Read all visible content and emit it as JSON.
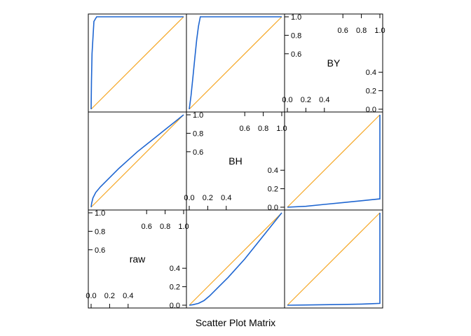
{
  "chart_data": {
    "type": "scatter",
    "title": "",
    "xlabel": "Scatter Plot Matrix",
    "variables": [
      "raw",
      "BH",
      "BY"
    ],
    "axis_range": [
      0,
      1
    ],
    "grid": false,
    "colors": {
      "points": "#1f66d1",
      "reference_line": "#f5a623",
      "frame": "#000000"
    },
    "diagonal_ticks": {
      "left_values": [
        "0.6",
        "0.8",
        "1.0"
      ],
      "top_values": [
        "0.6",
        "0.8",
        "1.0"
      ],
      "right_values": [
        "0.0",
        "0.2",
        "0.4"
      ],
      "bottom_values": [
        "0.0",
        "0.2",
        "0.4"
      ]
    },
    "reference_line": {
      "x": [
        0,
        1
      ],
      "y": [
        0,
        1
      ]
    },
    "panels": [
      {
        "id": "BY-vs-raw",
        "x_var": "raw",
        "y_var": "BY",
        "x": [
          0.0,
          0.004,
          0.01,
          0.03,
          0.06,
          0.1,
          0.2,
          0.4,
          0.6,
          0.8,
          1.0
        ],
        "y": [
          0.0,
          0.3,
          0.6,
          0.95,
          1.0,
          1.0,
          1.0,
          1.0,
          1.0,
          1.0,
          1.0
        ]
      },
      {
        "id": "BY-vs-BH",
        "x_var": "BH",
        "y_var": "BY",
        "x": [
          0.0,
          0.02,
          0.04,
          0.06,
          0.08,
          0.1,
          0.12,
          0.2,
          0.4,
          0.6,
          0.8,
          1.0
        ],
        "y": [
          0.0,
          0.15,
          0.35,
          0.55,
          0.75,
          0.9,
          1.0,
          1.0,
          1.0,
          1.0,
          1.0,
          1.0
        ]
      },
      {
        "id": "BH-vs-raw",
        "x_var": "raw",
        "y_var": "BH",
        "x": [
          0.0,
          0.005,
          0.02,
          0.05,
          0.1,
          0.2,
          0.3,
          0.4,
          0.5,
          0.6,
          0.7,
          0.8,
          0.9,
          1.0
        ],
        "y": [
          0.0,
          0.04,
          0.1,
          0.16,
          0.22,
          0.32,
          0.42,
          0.51,
          0.6,
          0.68,
          0.76,
          0.84,
          0.92,
          1.0
        ]
      },
      {
        "id": "BH-vs-BY",
        "x_var": "BY",
        "y_var": "BH",
        "x": [
          0.0,
          0.2,
          0.4,
          0.6,
          0.8,
          0.9,
          1.0,
          1.0,
          1.0,
          1.0
        ],
        "y": [
          0.0,
          0.01,
          0.03,
          0.05,
          0.07,
          0.08,
          0.09,
          0.5,
          0.9,
          1.0
        ]
      },
      {
        "id": "raw-vs-BH",
        "x_var": "BH",
        "y_var": "raw",
        "x": [
          0.0,
          0.04,
          0.1,
          0.16,
          0.22,
          0.32,
          0.42,
          0.51,
          0.6,
          0.68,
          0.76,
          0.84,
          0.92,
          1.0
        ],
        "y": [
          0.0,
          0.005,
          0.02,
          0.05,
          0.1,
          0.2,
          0.3,
          0.4,
          0.5,
          0.6,
          0.7,
          0.8,
          0.9,
          1.0
        ]
      },
      {
        "id": "raw-vs-BY",
        "x_var": "BY",
        "y_var": "raw",
        "x": [
          0.0,
          0.2,
          0.4,
          0.6,
          0.8,
          0.9,
          1.0,
          1.0,
          1.0,
          1.0
        ],
        "y": [
          0.0,
          0.002,
          0.005,
          0.008,
          0.012,
          0.016,
          0.02,
          0.3,
          0.7,
          1.0
        ]
      }
    ]
  }
}
